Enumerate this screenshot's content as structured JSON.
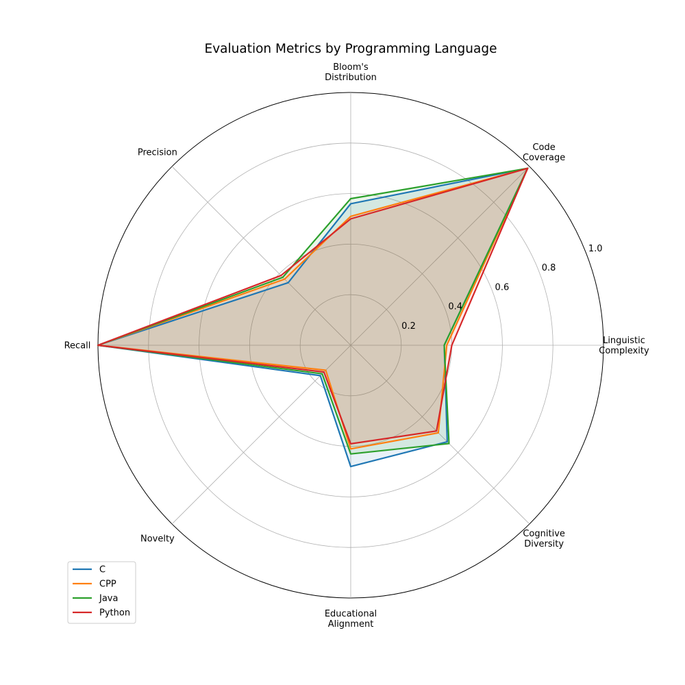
{
  "chart_data": {
    "type": "radar",
    "title": "Evaluation Metrics by Programming Language",
    "axes": [
      [
        "Linguistic",
        "Complexity"
      ],
      [
        "Code",
        "Coverage"
      ],
      [
        "Bloom's",
        "Distribution"
      ],
      [
        "Precision"
      ],
      [
        "Recall"
      ],
      [
        "Novelty"
      ],
      [
        "Educational",
        "Alignment"
      ],
      [
        "Cognitive",
        "Diversity"
      ]
    ],
    "rlim": [
      0,
      1.0
    ],
    "rticks": [
      "0.2",
      "0.4",
      "0.6",
      "0.8",
      "1.0"
    ],
    "rtick_values": [
      0.2,
      0.4,
      0.6,
      0.8,
      1.0
    ],
    "grid": true,
    "legend_position": "lower-left",
    "series": [
      {
        "name": "C",
        "color": "#1f77b4",
        "values": [
          0.37,
          0.99,
          0.56,
          0.35,
          1.0,
          0.17,
          0.48,
          0.54
        ]
      },
      {
        "name": "CPP",
        "color": "#ff7f0e",
        "values": [
          0.38,
          0.99,
          0.51,
          0.37,
          1.0,
          0.14,
          0.41,
          0.49
        ]
      },
      {
        "name": "Java",
        "color": "#2ca02c",
        "values": [
          0.37,
          0.99,
          0.58,
          0.38,
          1.0,
          0.16,
          0.43,
          0.55
        ]
      },
      {
        "name": "Python",
        "color": "#d62728",
        "values": [
          0.4,
          0.99,
          0.5,
          0.39,
          1.0,
          0.15,
          0.39,
          0.48
        ]
      }
    ]
  }
}
